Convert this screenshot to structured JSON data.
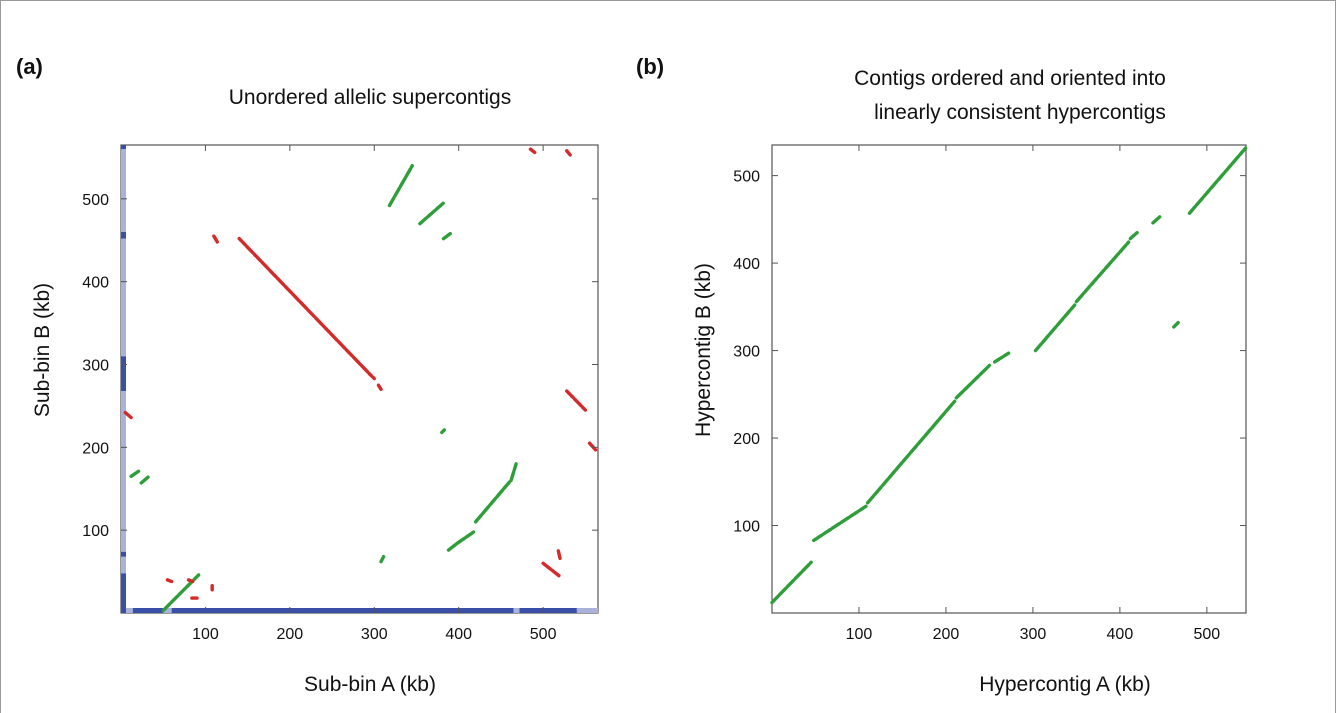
{
  "chart_data": [
    {
      "type": "scatter",
      "panel_label": "(a)",
      "title": "Unordered allelic supercontigs",
      "xlabel": "Sub-bin A (kb)",
      "ylabel": "Sub-bin B (kb)",
      "xlim": [
        0,
        565
      ],
      "ylim": [
        0,
        565
      ],
      "xticks": [
        100,
        200,
        300,
        400,
        500
      ],
      "yticks": [
        100,
        200,
        300,
        400,
        500
      ],
      "colors": {
        "forward": "#2e9e3a",
        "reverse": "#d42a2a",
        "bin_bar_dark": "#3a4fa8",
        "bin_bar_light": "#aab2da"
      },
      "series": [
        {
          "orientation": "forward",
          "segments": [
            [
              50,
              3,
              92,
              46
            ],
            [
              12,
              165,
              22,
              172
            ],
            [
              24,
              157,
              32,
              164
            ],
            [
              308,
              62,
              311,
              68
            ],
            [
              318,
              492,
              345,
              540
            ],
            [
              354,
              470,
              382,
              495
            ],
            [
              382,
              452,
              390,
              458
            ],
            [
              380,
              218,
              383,
              221
            ],
            [
              388,
              76,
              398,
              84
            ],
            [
              398,
              84,
              418,
              98
            ],
            [
              420,
              110,
              460,
              158
            ],
            [
              462,
              160,
              468,
              180
            ]
          ]
        },
        {
          "orientation": "reverse",
          "segments": [
            [
              140,
              452,
              295,
              288
            ],
            [
              295,
              288,
              300,
              283
            ],
            [
              305,
              275,
              308,
              270
            ],
            [
              110,
              455,
              114,
              448
            ],
            [
              5,
              242,
              12,
              236
            ],
            [
              485,
              560,
              490,
              556
            ],
            [
              528,
              558,
              532,
              553
            ],
            [
              500,
              60,
              520,
              44
            ],
            [
              518,
              75,
              520,
              66
            ],
            [
              528,
              268,
              550,
              245
            ],
            [
              555,
              205,
              563,
              196
            ],
            [
              55,
              40,
              60,
              38
            ],
            [
              80,
              40,
              85,
              38
            ],
            [
              108,
              33,
              108,
              28
            ],
            [
              84,
              18,
              90,
              18
            ]
          ]
        }
      ],
      "bin_bars": {
        "x_bins": [
          [
            0,
            5,
            "dark"
          ],
          [
            5,
            14,
            "light"
          ],
          [
            14,
            50,
            "dark"
          ],
          [
            50,
            60,
            "light"
          ],
          [
            60,
            465,
            "dark"
          ],
          [
            465,
            472,
            "light"
          ],
          [
            472,
            540,
            "dark"
          ],
          [
            540,
            565,
            "light"
          ]
        ],
        "y_bins": [
          [
            0,
            48,
            "dark"
          ],
          [
            48,
            68,
            "light"
          ],
          [
            68,
            74,
            "dark"
          ],
          [
            74,
            268,
            "light"
          ],
          [
            268,
            310,
            "dark"
          ],
          [
            310,
            452,
            "light"
          ],
          [
            452,
            460,
            "dark"
          ],
          [
            460,
            560,
            "light"
          ],
          [
            560,
            565,
            "dark"
          ]
        ]
      }
    },
    {
      "type": "scatter",
      "panel_label": "(b)",
      "title": "Contigs ordered and oriented into",
      "title_line2": "linearly consistent hypercontigs",
      "xlabel": "Hypercontig A (kb)",
      "ylabel": "Hypercontig B (kb)",
      "xlim": [
        0,
        545
      ],
      "ylim": [
        0,
        535
      ],
      "xticks": [
        100,
        200,
        300,
        400,
        500
      ],
      "yticks": [
        100,
        200,
        300,
        400,
        500
      ],
      "colors": {
        "forward": "#2e9e3a"
      },
      "series": [
        {
          "orientation": "forward",
          "segments": [
            [
              0,
              12,
              45,
              58
            ],
            [
              48,
              83,
              108,
              122
            ],
            [
              110,
              126,
              210,
              242
            ],
            [
              212,
              246,
              250,
              283
            ],
            [
              256,
              287,
              272,
              297
            ],
            [
              303,
              300,
              348,
              352
            ],
            [
              350,
              356,
              410,
              424
            ],
            [
              412,
              428,
              420,
              435
            ],
            [
              438,
              446,
              446,
              453
            ],
            [
              462,
              327,
              467,
              332
            ],
            [
              480,
              457,
              545,
              532
            ]
          ]
        }
      ]
    }
  ]
}
